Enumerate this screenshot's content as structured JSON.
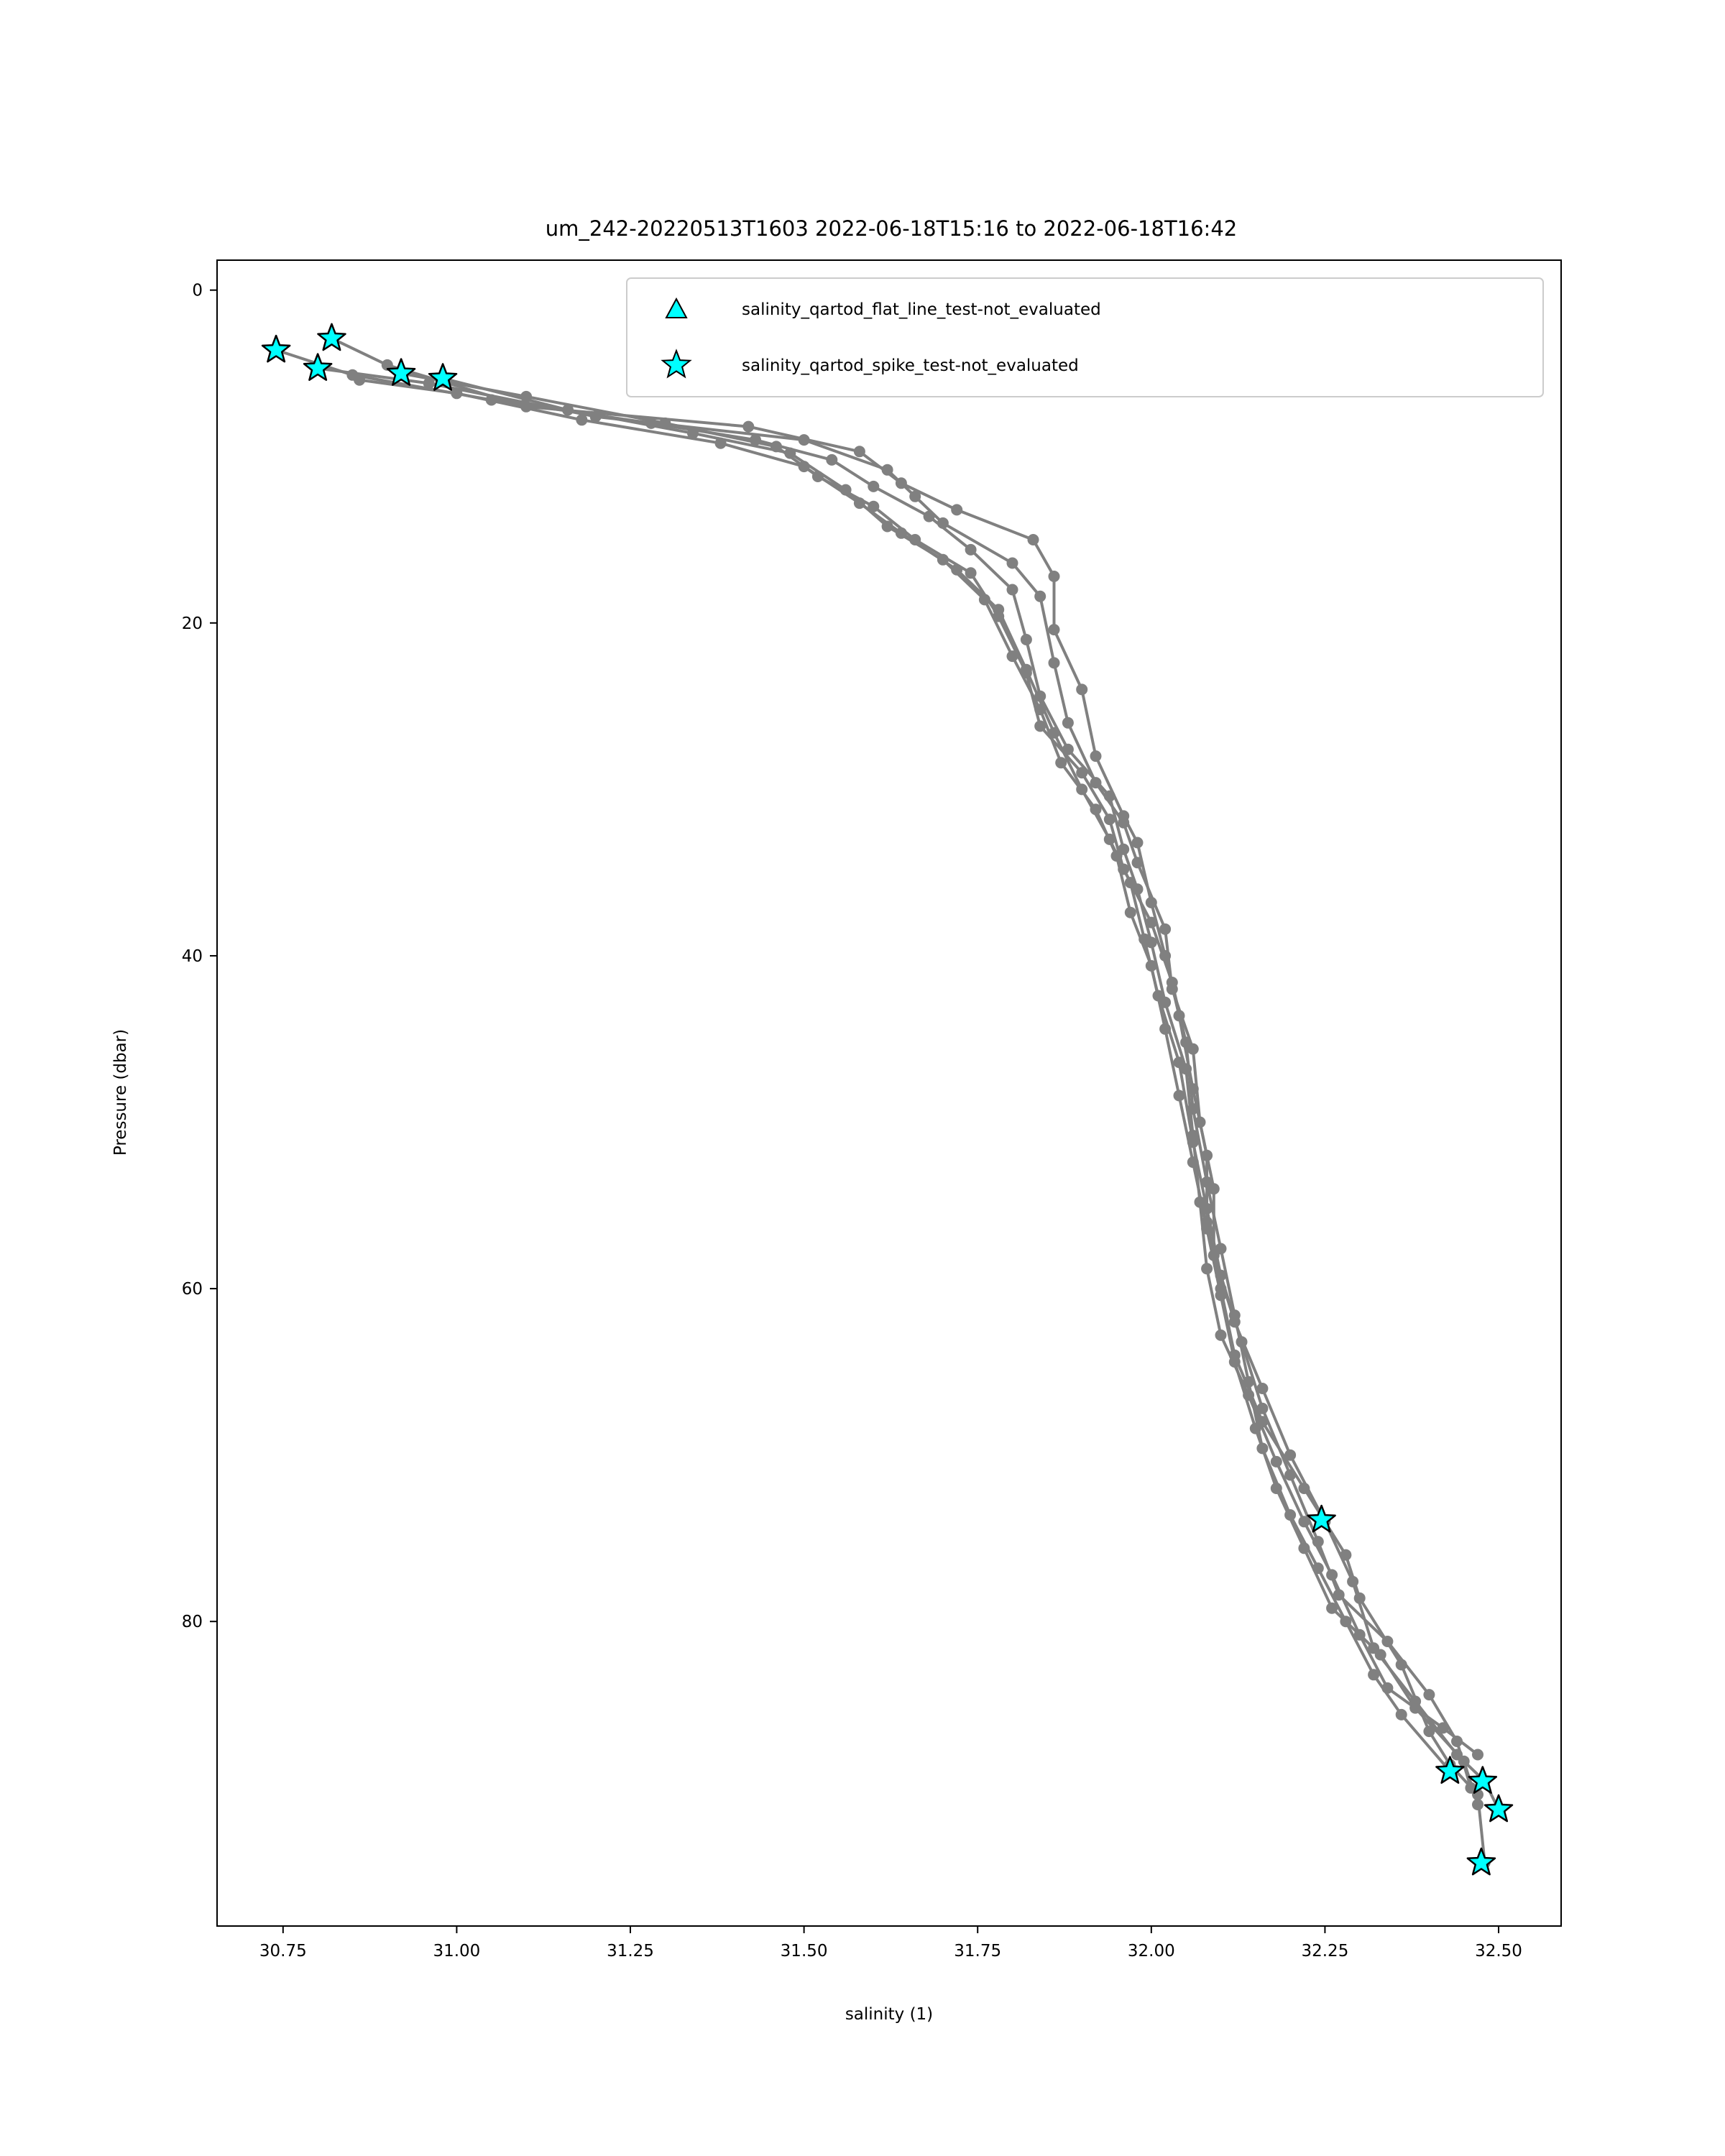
{
  "chart_data": {
    "type": "scatter",
    "title": "um_242-20220513T1603 2022-06-18T15:16 to 2022-06-18T16:42",
    "xlabel": "salinity (1)",
    "ylabel": "Pressure (dbar)",
    "xlim": [
      30.655,
      32.59
    ],
    "ylim": [
      98.3,
      -1.8
    ],
    "y_inverted": true,
    "grid": false,
    "x_ticks": [
      "30.75",
      "31.00",
      "31.25",
      "31.50",
      "31.75",
      "32.00",
      "32.25",
      "32.50"
    ],
    "x_tick_values": [
      30.75,
      31.0,
      31.25,
      31.5,
      31.75,
      32.0,
      32.25,
      32.5
    ],
    "y_ticks": [
      "0",
      "20",
      "40",
      "60",
      "80"
    ],
    "y_tick_values": [
      0,
      20,
      40,
      60,
      80
    ],
    "legend": {
      "location": "upper right",
      "entries": [
        {
          "label": "salinity_qartod_flat_line_test-not_evaluated",
          "marker": "triangle",
          "color": "#00ffff"
        },
        {
          "label": "salinity_qartod_spike_test-not_evaluated",
          "marker": "star",
          "color": "#00ffff"
        }
      ]
    },
    "profile_color": "#808080",
    "flag_color": "#00ffff",
    "series": [
      {
        "points": [
          [
            30.82,
            2.9
          ],
          [
            30.9,
            4.5
          ],
          [
            31.1,
            7.0
          ],
          [
            31.42,
            8.2
          ],
          [
            31.58,
            9.7
          ],
          [
            31.64,
            11.6
          ],
          [
            31.72,
            13.2
          ],
          [
            31.83,
            15.0
          ],
          [
            31.86,
            17.2
          ],
          [
            31.86,
            20.4
          ],
          [
            31.9,
            24.0
          ],
          [
            31.92,
            28.0
          ],
          [
            31.96,
            31.6
          ],
          [
            31.98,
            33.2
          ],
          [
            32.0,
            36.8
          ],
          [
            32.02,
            40.0
          ],
          [
            32.04,
            43.6
          ],
          [
            32.06,
            48.0
          ],
          [
            32.08,
            52.0
          ],
          [
            32.08,
            56.0
          ],
          [
            32.1,
            60.0
          ],
          [
            32.12,
            64.0
          ],
          [
            32.16,
            68.0
          ],
          [
            32.22,
            72.0
          ],
          [
            32.28,
            76.0
          ],
          [
            32.3,
            78.6
          ],
          [
            32.36,
            82.6
          ],
          [
            32.4,
            86.6
          ],
          [
            32.43,
            88.6
          ],
          [
            32.47,
            90.4
          ],
          [
            32.48,
            94.5
          ]
        ]
      },
      {
        "points": [
          [
            30.8,
            4.7
          ],
          [
            30.96,
            5.6
          ],
          [
            31.2,
            7.6
          ],
          [
            31.5,
            9.0
          ],
          [
            31.62,
            10.8
          ],
          [
            31.66,
            12.4
          ],
          [
            31.7,
            14.0
          ],
          [
            31.8,
            16.4
          ],
          [
            31.84,
            18.4
          ],
          [
            31.86,
            22.4
          ],
          [
            31.88,
            26.0
          ],
          [
            31.92,
            29.6
          ],
          [
            31.96,
            32.0
          ],
          [
            31.98,
            34.4
          ],
          [
            32.02,
            38.4
          ],
          [
            32.03,
            42.0
          ],
          [
            32.06,
            45.6
          ],
          [
            32.07,
            50.0
          ],
          [
            32.09,
            54.0
          ],
          [
            32.09,
            58.0
          ],
          [
            32.12,
            62.0
          ],
          [
            32.16,
            66.0
          ],
          [
            32.2,
            70.0
          ],
          [
            32.25,
            74.0
          ],
          [
            32.29,
            77.6
          ],
          [
            32.32,
            81.6
          ],
          [
            32.38,
            84.8
          ],
          [
            32.44,
            88.0
          ],
          [
            32.48,
            89.6
          ],
          [
            32.5,
            91.3
          ]
        ]
      },
      {
        "points": [
          [
            30.74,
            3.6
          ],
          [
            30.85,
            5.1
          ],
          [
            31.05,
            6.6
          ],
          [
            31.28,
            8.0
          ],
          [
            31.43,
            9.0
          ],
          [
            31.54,
            10.2
          ],
          [
            31.6,
            11.8
          ],
          [
            31.68,
            13.6
          ],
          [
            31.74,
            15.6
          ],
          [
            31.8,
            18.0
          ],
          [
            31.82,
            21.0
          ],
          [
            31.84,
            24.4
          ],
          [
            31.88,
            27.6
          ],
          [
            31.94,
            30.4
          ],
          [
            31.96,
            33.6
          ],
          [
            31.98,
            36.0
          ],
          [
            32.0,
            39.2
          ],
          [
            32.02,
            42.8
          ],
          [
            32.05,
            46.8
          ],
          [
            32.06,
            50.8
          ],
          [
            32.07,
            54.8
          ],
          [
            32.08,
            58.8
          ],
          [
            32.1,
            62.8
          ],
          [
            32.14,
            66.4
          ],
          [
            32.18,
            70.4
          ],
          [
            32.22,
            74.0
          ],
          [
            32.26,
            77.2
          ],
          [
            32.3,
            80.8
          ],
          [
            32.34,
            84.0
          ],
          [
            32.42,
            86.4
          ],
          [
            32.47,
            88.0
          ]
        ]
      },
      {
        "points": [
          [
            30.92,
            5.0
          ],
          [
            31.1,
            6.4
          ],
          [
            31.3,
            8.0
          ],
          [
            31.46,
            9.4
          ],
          [
            31.52,
            11.2
          ],
          [
            31.6,
            13.0
          ],
          [
            31.66,
            15.0
          ],
          [
            31.74,
            17.0
          ],
          [
            31.78,
            19.6
          ],
          [
            31.82,
            23.0
          ],
          [
            31.84,
            26.2
          ],
          [
            31.9,
            29.0
          ],
          [
            31.94,
            31.8
          ],
          [
            31.96,
            34.8
          ],
          [
            32.0,
            38.0
          ],
          [
            32.03,
            41.6
          ],
          [
            32.05,
            45.2
          ],
          [
            32.06,
            49.2
          ],
          [
            32.08,
            53.6
          ],
          [
            32.1,
            57.6
          ],
          [
            32.12,
            61.6
          ],
          [
            32.14,
            65.6
          ],
          [
            32.16,
            69.6
          ],
          [
            32.2,
            73.6
          ],
          [
            32.24,
            76.8
          ],
          [
            32.28,
            80.0
          ],
          [
            32.32,
            83.2
          ],
          [
            32.36,
            85.6
          ],
          [
            32.43,
            89.0
          ]
        ]
      },
      {
        "points": [
          [
            30.98,
            5.3
          ],
          [
            31.16,
            7.2
          ],
          [
            31.34,
            8.6
          ],
          [
            31.48,
            9.8
          ],
          [
            31.56,
            12.0
          ],
          [
            31.62,
            14.2
          ],
          [
            31.7,
            16.2
          ],
          [
            31.76,
            18.6
          ],
          [
            31.8,
            22.0
          ],
          [
            31.84,
            25.2
          ],
          [
            31.87,
            28.4
          ],
          [
            31.92,
            31.2
          ],
          [
            31.95,
            34.0
          ],
          [
            31.97,
            37.4
          ],
          [
            32.0,
            40.6
          ],
          [
            32.02,
            44.4
          ],
          [
            32.04,
            48.4
          ],
          [
            32.06,
            52.4
          ],
          [
            32.08,
            56.4
          ],
          [
            32.1,
            60.4
          ],
          [
            32.12,
            64.4
          ],
          [
            32.15,
            68.4
          ],
          [
            32.18,
            72.0
          ],
          [
            32.22,
            75.6
          ],
          [
            32.26,
            79.2
          ],
          [
            32.33,
            82.0
          ],
          [
            32.38,
            85.2
          ],
          [
            32.45,
            88.4
          ],
          [
            32.47,
            91.0
          ]
        ]
      },
      {
        "points": [
          [
            30.86,
            5.4
          ],
          [
            31.0,
            6.2
          ],
          [
            31.18,
            7.8
          ],
          [
            31.38,
            9.2
          ],
          [
            31.5,
            10.6
          ],
          [
            31.58,
            12.8
          ],
          [
            31.64,
            14.6
          ],
          [
            31.72,
            16.8
          ],
          [
            31.78,
            19.2
          ],
          [
            31.82,
            22.8
          ],
          [
            31.86,
            26.6
          ],
          [
            31.9,
            30.0
          ],
          [
            31.94,
            33.0
          ],
          [
            31.97,
            35.6
          ],
          [
            31.99,
            39.0
          ],
          [
            32.01,
            42.4
          ],
          [
            32.04,
            46.4
          ],
          [
            32.06,
            51.2
          ],
          [
            32.08,
            55.2
          ],
          [
            32.1,
            59.2
          ],
          [
            32.13,
            63.2
          ],
          [
            32.16,
            67.2
          ],
          [
            32.2,
            71.2
          ],
          [
            32.24,
            75.2
          ],
          [
            32.27,
            78.4
          ],
          [
            32.34,
            81.2
          ],
          [
            32.4,
            84.4
          ],
          [
            32.44,
            87.2
          ],
          [
            32.46,
            90.0
          ]
        ]
      }
    ],
    "flags_spike_test": [
      [
        30.74,
        3.6
      ],
      [
        30.82,
        2.9
      ],
      [
        30.8,
        4.7
      ],
      [
        30.92,
        5.0
      ],
      [
        30.98,
        5.3
      ],
      [
        32.245,
        73.9
      ],
      [
        32.43,
        89.0
      ],
      [
        32.477,
        89.6
      ],
      [
        32.5,
        91.3
      ],
      [
        32.475,
        94.5
      ]
    ],
    "flags_flat_line_test": []
  }
}
